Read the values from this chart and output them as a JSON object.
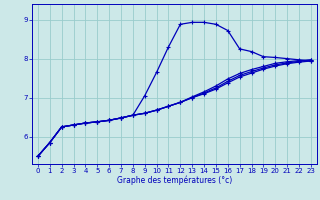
{
  "xlabel": "Graphe des températures (°c)",
  "xlim": [
    -0.5,
    23.5
  ],
  "ylim": [
    5.3,
    9.4
  ],
  "yticks": [
    6,
    7,
    8,
    9
  ],
  "xticks": [
    0,
    1,
    2,
    3,
    4,
    5,
    6,
    7,
    8,
    9,
    10,
    11,
    12,
    13,
    14,
    15,
    16,
    17,
    18,
    19,
    20,
    21,
    22,
    23
  ],
  "bg_color": "#cce8e8",
  "grid_color": "#99cccc",
  "line_color": "#0000bb",
  "lines": [
    {
      "x": [
        0,
        1,
        2,
        3,
        4,
        5,
        6,
        7,
        8,
        9,
        10,
        11,
        12,
        13,
        14,
        15,
        16,
        17,
        18,
        19,
        20,
        21,
        22,
        23
      ],
      "y": [
        5.5,
        5.85,
        6.25,
        6.3,
        6.35,
        6.38,
        6.42,
        6.48,
        6.55,
        7.05,
        7.65,
        8.3,
        8.88,
        8.93,
        8.93,
        8.88,
        8.72,
        8.25,
        8.18,
        8.05,
        8.03,
        8.0,
        7.97,
        7.93
      ]
    },
    {
      "x": [
        0,
        1,
        2,
        3,
        4,
        5,
        6,
        7,
        8,
        9,
        10,
        11,
        12,
        13,
        14,
        15,
        16,
        17,
        18,
        19,
        20,
        21,
        22,
        23
      ],
      "y": [
        5.5,
        5.85,
        6.25,
        6.3,
        6.35,
        6.38,
        6.42,
        6.48,
        6.55,
        6.6,
        6.68,
        6.78,
        6.88,
        7.02,
        7.15,
        7.3,
        7.48,
        7.62,
        7.72,
        7.8,
        7.88,
        7.92,
        7.95,
        7.97
      ]
    },
    {
      "x": [
        0,
        1,
        2,
        3,
        4,
        5,
        6,
        7,
        8,
        9,
        10,
        11,
        12,
        13,
        14,
        15,
        16,
        17,
        18,
        19,
        20,
        21,
        22,
        23
      ],
      "y": [
        5.5,
        5.85,
        6.25,
        6.3,
        6.35,
        6.38,
        6.42,
        6.48,
        6.55,
        6.6,
        6.68,
        6.78,
        6.88,
        7.0,
        7.12,
        7.25,
        7.42,
        7.57,
        7.67,
        7.76,
        7.84,
        7.89,
        7.93,
        7.96
      ]
    },
    {
      "x": [
        0,
        1,
        2,
        3,
        4,
        5,
        6,
        7,
        8,
        9,
        10,
        11,
        12,
        13,
        14,
        15,
        16,
        17,
        18,
        19,
        20,
        21,
        22,
        23
      ],
      "y": [
        5.5,
        5.85,
        6.25,
        6.3,
        6.35,
        6.38,
        6.42,
        6.48,
        6.55,
        6.6,
        6.68,
        6.78,
        6.88,
        7.0,
        7.1,
        7.22,
        7.38,
        7.53,
        7.63,
        7.73,
        7.81,
        7.87,
        7.91,
        7.94
      ]
    }
  ]
}
